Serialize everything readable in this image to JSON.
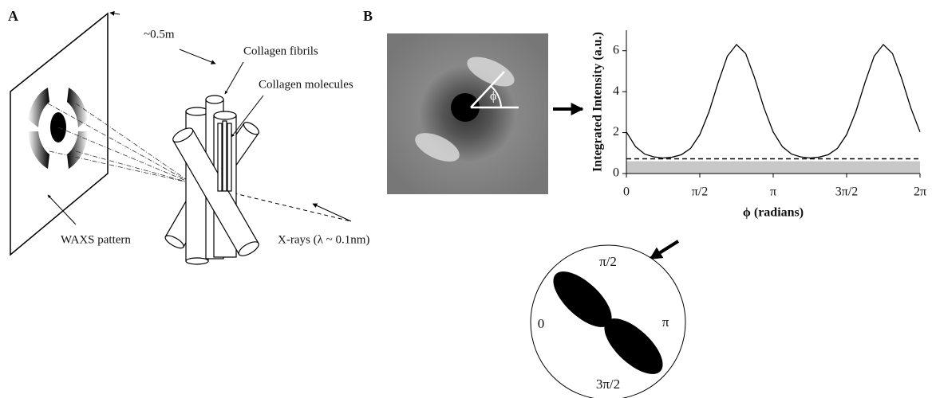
{
  "panel_a": {
    "label": "A",
    "distance": "~0.5m",
    "fibrils": "Collagen fibrils",
    "molecules": "Collagen molecules",
    "pattern": "WAXS pattern",
    "xrays": "X-rays (λ ~ 0.1nm)"
  },
  "panel_b": {
    "label": "B",
    "angle": "ϕ"
  },
  "chart_data": {
    "type": "line",
    "x_label": "ϕ (radians)",
    "y_label": "Integrated Intensity (a.u.)",
    "x": [
      0,
      0.1963,
      0.3927,
      0.589,
      0.7854,
      0.9817,
      1.1781,
      1.3744,
      1.5708,
      1.7671,
      1.9635,
      2.1598,
      2.3562,
      2.5525,
      2.7489,
      2.9452,
      3.1416,
      3.3379,
      3.5343,
      3.7306,
      3.927,
      4.1233,
      4.3197,
      4.516,
      4.7124,
      4.9087,
      5.1051,
      5.3014,
      5.4978,
      5.6941,
      5.8905,
      6.0868,
      6.2832
    ],
    "series": [
      {
        "color": "#000000",
        "values": [
          2.03,
          1.31,
          0.95,
          0.81,
          0.76,
          0.8,
          0.92,
          1.23,
          1.9,
          3.01,
          4.44,
          5.73,
          6.3,
          5.86,
          4.64,
          3.2,
          2.03,
          1.31,
          0.95,
          0.81,
          0.76,
          0.8,
          0.92,
          1.23,
          1.9,
          3.01,
          4.44,
          5.73,
          6.3,
          5.86,
          4.64,
          3.2,
          2.03
        ]
      }
    ],
    "threshold_line": 0.72,
    "background_band": 0.6,
    "band_color": "#c8c8c8",
    "xlim": [
      0,
      6.2832
    ],
    "xticks": [
      0,
      {
        "value": 1.5708,
        "label": "π/2"
      },
      {
        "value": 3.1416,
        "label": "π"
      },
      {
        "value": 4.7124,
        "label": "3π/2"
      },
      {
        "value": 6.2832,
        "label": "2π"
      }
    ],
    "ylim": [
      0,
      7
    ],
    "yticks": [
      0,
      2,
      4,
      6
    ],
    "grid": false
  },
  "polar": {
    "top": "π/2",
    "left": "0",
    "right": "π",
    "bottom": "3π/2"
  }
}
